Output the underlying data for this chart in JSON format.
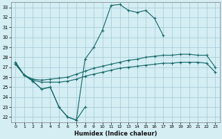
{
  "xlabel": "Humidex (Indice chaleur)",
  "bg_color": "#d4eef4",
  "grid_color": "#aacdd8",
  "line_color": "#1a6b6b",
  "xlim": [
    -0.5,
    23.5
  ],
  "ylim": [
    21.5,
    33.5
  ],
  "xticks": [
    0,
    1,
    2,
    3,
    4,
    5,
    6,
    7,
    8,
    9,
    10,
    11,
    12,
    13,
    14,
    15,
    16,
    17,
    18,
    19,
    20,
    21,
    22,
    23
  ],
  "yticks": [
    22,
    23,
    24,
    25,
    26,
    27,
    28,
    29,
    30,
    31,
    32,
    33
  ],
  "lines": [
    {
      "x": [
        0,
        1,
        2,
        3,
        4,
        5,
        6,
        7,
        8
      ],
      "y": [
        27.5,
        26.2,
        25.6,
        24.8,
        25.0,
        23.0,
        22.0,
        21.7,
        23.0
      ]
    },
    {
      "x": [
        0,
        1,
        2,
        3,
        4,
        5,
        6,
        7,
        8,
        9,
        10,
        11,
        12,
        13,
        14,
        15,
        16,
        17
      ],
      "y": [
        27.5,
        26.2,
        25.6,
        24.8,
        25.0,
        23.0,
        22.0,
        21.7,
        27.8,
        29.0,
        30.7,
        33.2,
        33.3,
        32.7,
        32.5,
        32.7,
        31.9,
        30.2
      ]
    },
    {
      "x": [
        0,
        1,
        2,
        3,
        4,
        5,
        6,
        7,
        8,
        9,
        10,
        11,
        12,
        13,
        14,
        15,
        16,
        17,
        18,
        19,
        20,
        21,
        22,
        23
      ],
      "y": [
        27.3,
        26.2,
        25.8,
        25.7,
        25.8,
        25.9,
        26.0,
        26.3,
        26.6,
        26.9,
        27.1,
        27.3,
        27.5,
        27.7,
        27.8,
        28.0,
        28.1,
        28.2,
        28.2,
        28.3,
        28.3,
        28.2,
        28.2,
        27.0
      ]
    },
    {
      "x": [
        0,
        1,
        2,
        3,
        4,
        5,
        6,
        7,
        8,
        9,
        10,
        11,
        12,
        13,
        14,
        15,
        16,
        17,
        18,
        19,
        20,
        21,
        22,
        23
      ],
      "y": [
        27.3,
        26.2,
        25.7,
        25.5,
        25.5,
        25.5,
        25.6,
        25.8,
        26.1,
        26.3,
        26.5,
        26.7,
        26.9,
        27.0,
        27.1,
        27.2,
        27.3,
        27.4,
        27.4,
        27.5,
        27.5,
        27.5,
        27.4,
        26.5
      ]
    }
  ]
}
